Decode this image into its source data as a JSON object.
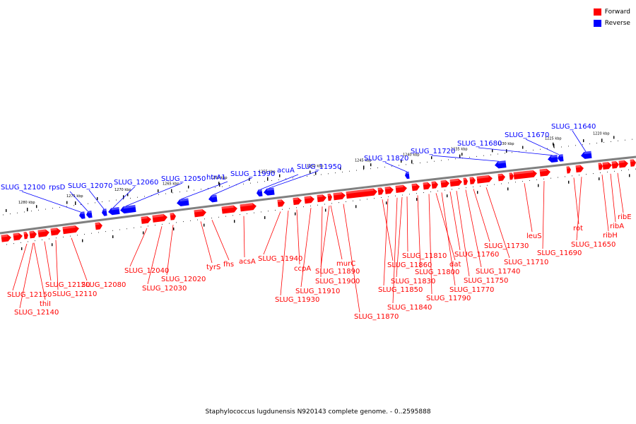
{
  "caption": "Staphylococcus lugdunensis N920143 complete genome. - 0..2595888",
  "legend": [
    {
      "label": "Forward",
      "color": "#ff0000"
    },
    {
      "label": "Reverse",
      "color": "#0000ff"
    }
  ],
  "colors": {
    "forward": "#ff0000",
    "reverse": "#0000ff",
    "backbone": "#808080"
  },
  "ticks": [
    "1280 kbp",
    "1275 kbp",
    "1270 kbp",
    "1265 kbp",
    "1260 kbp",
    "1255 kbp",
    "1250 kbp",
    "1245 kbp",
    "1240 kbp",
    "1235 kbp",
    "1230 kbp",
    "1225 kbp",
    "1220 kbp"
  ],
  "reverse_labels": [
    "SLUG_12100",
    "rpsD",
    "SLUG_12070",
    "SLUG_12060",
    "SLUG_12050",
    "htrA1",
    "SLUG_11990",
    "acuA",
    "SLUG_11950",
    "SLUG_11820",
    "SLUG_11720",
    "SLUG_11680",
    "SLUG_11670",
    "SLUG_11640"
  ],
  "forward_labels": [
    "SLUG_12150",
    "SLUG_12140",
    "thiI",
    "SLUG_12120",
    "SLUG_12110",
    "SLUG_12080",
    "SLUG_12040",
    "SLUG_12030",
    "SLUG_12020",
    "tyrS",
    "fhs",
    "acsA",
    "SLUG_11940",
    "SLUG_11930",
    "ccpA",
    "SLUG_11910",
    "SLUG_11900",
    "SLUG_11890",
    "murC",
    "SLUG_11870",
    "SLUG_11860",
    "SLUG_11850",
    "SLUG_11840",
    "SLUG_11830",
    "SLUG_11810",
    "SLUG_11800",
    "SLUG_11790",
    "dat",
    "SLUG_11770",
    "SLUG_11760",
    "SLUG_11750",
    "SLUG_11740",
    "SLUG_11730",
    "SLUG_11710",
    "leuS",
    "SLUG_11690",
    "rot",
    "SLUG_11650",
    "ribH",
    "ribA",
    "ribE"
  ]
}
